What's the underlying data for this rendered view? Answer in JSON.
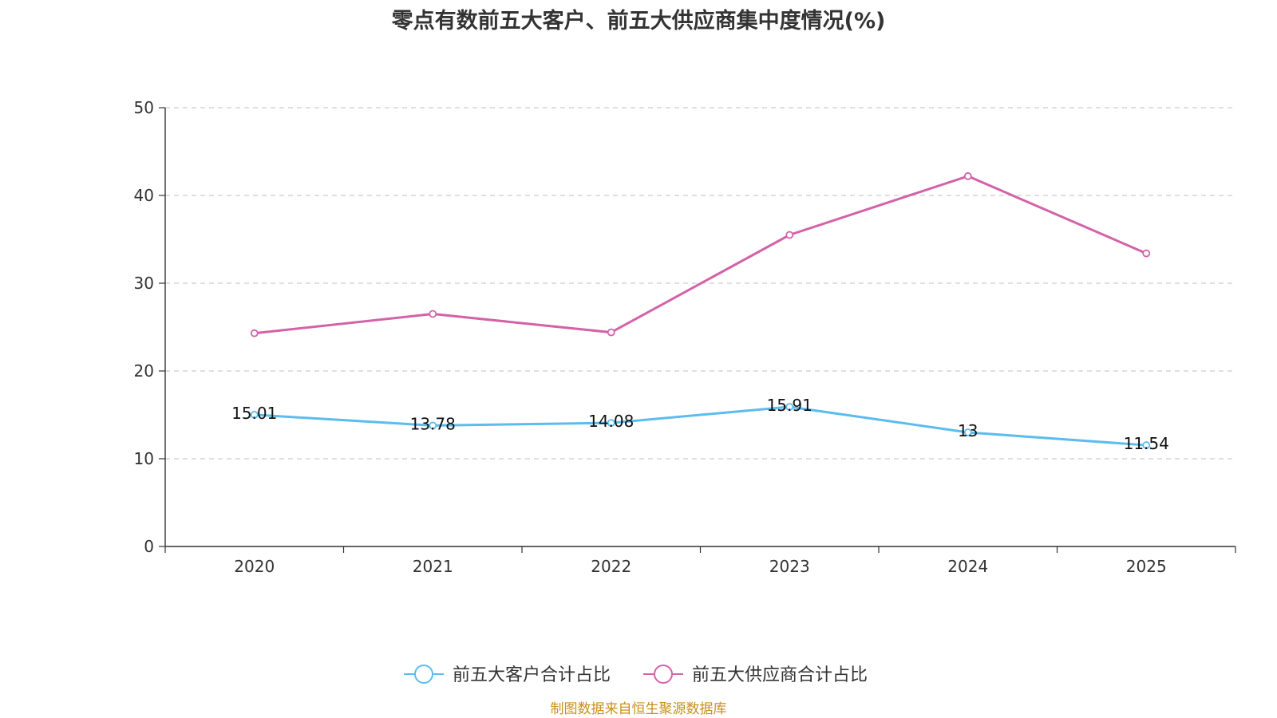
{
  "title": "零点有数前五大客户、前五大供应商集中度情况(%)",
  "source": "制图数据来自恒生聚源数据库",
  "colors": {
    "customers": "#5bbcee",
    "suppliers": "#d462a8"
  },
  "chart_data": {
    "type": "line",
    "title": "零点有数前五大客户、前五大供应商集中度情况(%)",
    "categories": [
      "2020",
      "2021",
      "2022",
      "2023",
      "2024",
      "2025"
    ],
    "ylim": [
      0,
      50
    ],
    "yticks": [
      "0",
      "10",
      "20",
      "30",
      "40",
      "50"
    ],
    "grid": true,
    "legend_position": "bottom",
    "series": [
      {
        "key": "customers",
        "name": "前五大客户合计占比",
        "values": [
          15.01,
          13.78,
          14.08,
          15.91,
          13,
          11.54
        ],
        "labels": [
          "15.01",
          "13.78",
          "14.08",
          "15.91",
          "13",
          "11.54"
        ],
        "show_labels": true
      },
      {
        "key": "suppliers",
        "name": "前五大供应商合计占比",
        "values": [
          24.3,
          26.5,
          24.4,
          35.5,
          42.2,
          33.4
        ],
        "show_labels": false
      }
    ]
  }
}
